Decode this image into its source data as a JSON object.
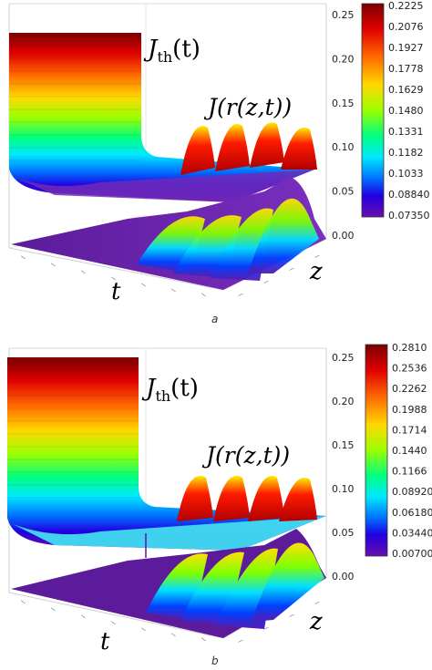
{
  "panels": [
    {
      "caption": "a",
      "label_jth": "J<sub>th</sub>(t)",
      "label_jth_main": "J",
      "label_jth_sub": "th",
      "label_jth_arg": "(t)",
      "label_jr": "J(r(z,t))",
      "axis_t": "t",
      "axis_z": "z",
      "zaxis_ticks": [
        "0.25",
        "0.20",
        "0.15",
        "0.10",
        "0.05",
        "0.00"
      ],
      "colorbar_ticks": [
        "0.2225",
        "0.2076",
        "0.1927",
        "0.1778",
        "0.1629",
        "0.1480",
        "0.1331",
        "0.1182",
        "0.1033",
        "0.08840",
        "0.07350"
      ]
    },
    {
      "caption": "b",
      "label_jth_main": "J",
      "label_jth_sub": "th",
      "label_jth_arg": "(t)",
      "label_jr": "J(r(z,t))",
      "axis_t": "t",
      "axis_z": "z",
      "zaxis_ticks": [
        "0.25",
        "0.20",
        "0.15",
        "0.10",
        "0.05",
        "0.00"
      ],
      "colorbar_ticks": [
        "0.2810",
        "0.2536",
        "0.2262",
        "0.1988",
        "0.1714",
        "0.1440",
        "0.1166",
        "0.08920",
        "0.06180",
        "0.03440",
        "0.007000"
      ]
    }
  ],
  "chart_data": [
    {
      "type": "surface3d",
      "series": [
        {
          "name": "J_th(t)",
          "plateau": 0.2225,
          "floor": 0.0735
        },
        {
          "name": "J(r(z,t))",
          "peak_count": 4,
          "peak_max": 0.2225
        }
      ],
      "zlim": [
        0.0,
        0.25
      ],
      "colorbar": {
        "min": 0.0735,
        "max": 0.2225
      }
    },
    {
      "type": "surface3d",
      "series": [
        {
          "name": "J_th(t)",
          "plateau": 0.281,
          "floor": 0.07
        },
        {
          "name": "J(r(z,t))",
          "peak_count": 4,
          "peak_max": 0.281
        }
      ],
      "zlim": [
        0.0,
        0.25
      ],
      "colorbar": {
        "min": 0.007,
        "max": 0.281
      }
    }
  ],
  "colors": {
    "jet": [
      "#8b0000",
      "#ff0000",
      "#ff8c00",
      "#ffff00",
      "#7fff00",
      "#00ff7f",
      "#00ffff",
      "#0080ff",
      "#0000ff",
      "#6a0dad",
      "#4b0082"
    ]
  }
}
